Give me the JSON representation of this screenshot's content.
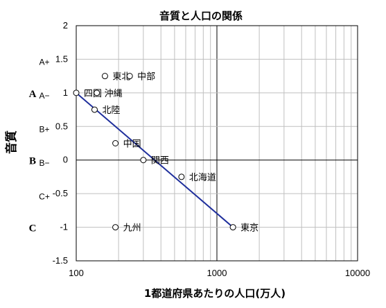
{
  "chart_data": {
    "type": "scatter",
    "title": "音質と人口の関係",
    "xlabel": "1都道府県あたりの人口(万人)",
    "ylabel": "音質",
    "x_scale": "log",
    "xlim": [
      100,
      10000
    ],
    "ylim": [
      -1.5,
      2
    ],
    "x_ticks": [
      100,
      1000,
      10000
    ],
    "x_tick_labels": [
      "100",
      "1000",
      "10000"
    ],
    "y_ticks": [
      -1.5,
      -1,
      -0.5,
      0,
      0.5,
      1,
      1.5,
      2
    ],
    "y_tick_labels": [
      "-1.5",
      "-1",
      "-0.5",
      "0",
      "0.5",
      "1",
      "1.5",
      "2"
    ],
    "grid": true,
    "grades": [
      {
        "label": "A+",
        "y": 1.25,
        "major": false
      },
      {
        "label": "A",
        "y": 1.0,
        "major": true
      },
      {
        "label": "A−",
        "y": 0.75,
        "major": false
      },
      {
        "label": "B+",
        "y": 0.25,
        "major": false
      },
      {
        "label": "B",
        "y": 0.0,
        "major": true
      },
      {
        "label": "B−",
        "y": -0.25,
        "major": false
      },
      {
        "label": "C+",
        "y": -0.75,
        "major": false
      },
      {
        "label": "C",
        "y": -1.0,
        "major": true
      }
    ],
    "points": [
      {
        "label": "東北",
        "x": 160,
        "y": 1.25
      },
      {
        "label": "中部",
        "x": 240,
        "y": 1.25
      },
      {
        "label": "四国",
        "x": 100,
        "y": 1.0
      },
      {
        "label": "沖縄",
        "x": 140,
        "y": 1.0
      },
      {
        "label": "北陸",
        "x": 135,
        "y": 0.75
      },
      {
        "label": "中国",
        "x": 190,
        "y": 0.25
      },
      {
        "label": "関西",
        "x": 300,
        "y": 0.0
      },
      {
        "label": "北海道",
        "x": 560,
        "y": -0.25
      },
      {
        "label": "九州",
        "x": 190,
        "y": -1.0
      },
      {
        "label": "東京",
        "x": 1300,
        "y": -1.0
      }
    ],
    "trendline": {
      "from": {
        "x": 100,
        "y": 1.0
      },
      "to": {
        "x": 1300,
        "y": -1.0
      }
    },
    "colors": {
      "trendline": "#1f2f9c",
      "grid": "#bfbfbf",
      "axis": "#000000",
      "marker": "#000000"
    }
  }
}
